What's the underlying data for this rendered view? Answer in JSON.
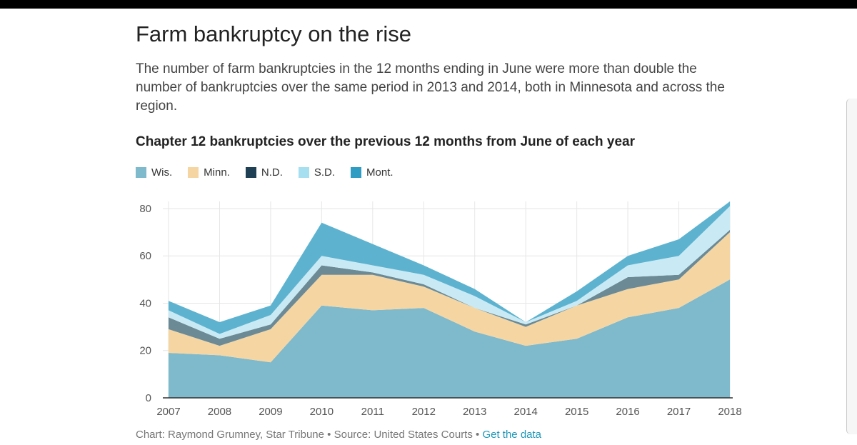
{
  "title": "Farm bankruptcy on the rise",
  "subtitle": "The number of farm bankruptcies in the 12 months ending in June were more than double the number of bankruptcies over the same period in 2013 and 2014, both in Minnesota and across the region.",
  "footer": {
    "credit": "Chart: Raymond Grumney, Star Tribune",
    "separator": " • ",
    "source": "Source: United States Courts",
    "link": "Get the data"
  },
  "colors": {
    "Wis.": "#7fb9cc",
    "Minn.": "#f5d6a3",
    "N.D.": "#6b8a96",
    "S.D.": "#c9eaf5",
    "Mont.": "#5db3cf"
  },
  "chart_data": {
    "type": "area",
    "stacked": true,
    "title": "Chapter 12 bankruptcies over the previous 12 months from June of each year",
    "x": [
      "2007",
      "2008",
      "2009",
      "2010",
      "2011",
      "2012",
      "2013",
      "2014",
      "2015",
      "2016",
      "2017",
      "2018"
    ],
    "yticks": [
      0,
      20,
      40,
      60,
      80
    ],
    "ylim": [
      0,
      83
    ],
    "grid": true,
    "legend_position": "top-left",
    "series": [
      {
        "name": "Wis.",
        "values": [
          19,
          18,
          15,
          39,
          37,
          38,
          28,
          22,
          25,
          34,
          38,
          50
        ]
      },
      {
        "name": "Minn.",
        "values": [
          10,
          4,
          14,
          13,
          15,
          9,
          10,
          8,
          14,
          12,
          12,
          20
        ]
      },
      {
        "name": "N.D.",
        "values": [
          5,
          3,
          2,
          4,
          1,
          1,
          0,
          1,
          0,
          5,
          2,
          1
        ]
      },
      {
        "name": "S.D.",
        "values": [
          3,
          2,
          4,
          4,
          3,
          4,
          5,
          1,
          2,
          5,
          8,
          10
        ]
      },
      {
        "name": "Mont.",
        "values": [
          4,
          5,
          4,
          14,
          9,
          4,
          3,
          0,
          4,
          4,
          7,
          2
        ]
      }
    ]
  }
}
